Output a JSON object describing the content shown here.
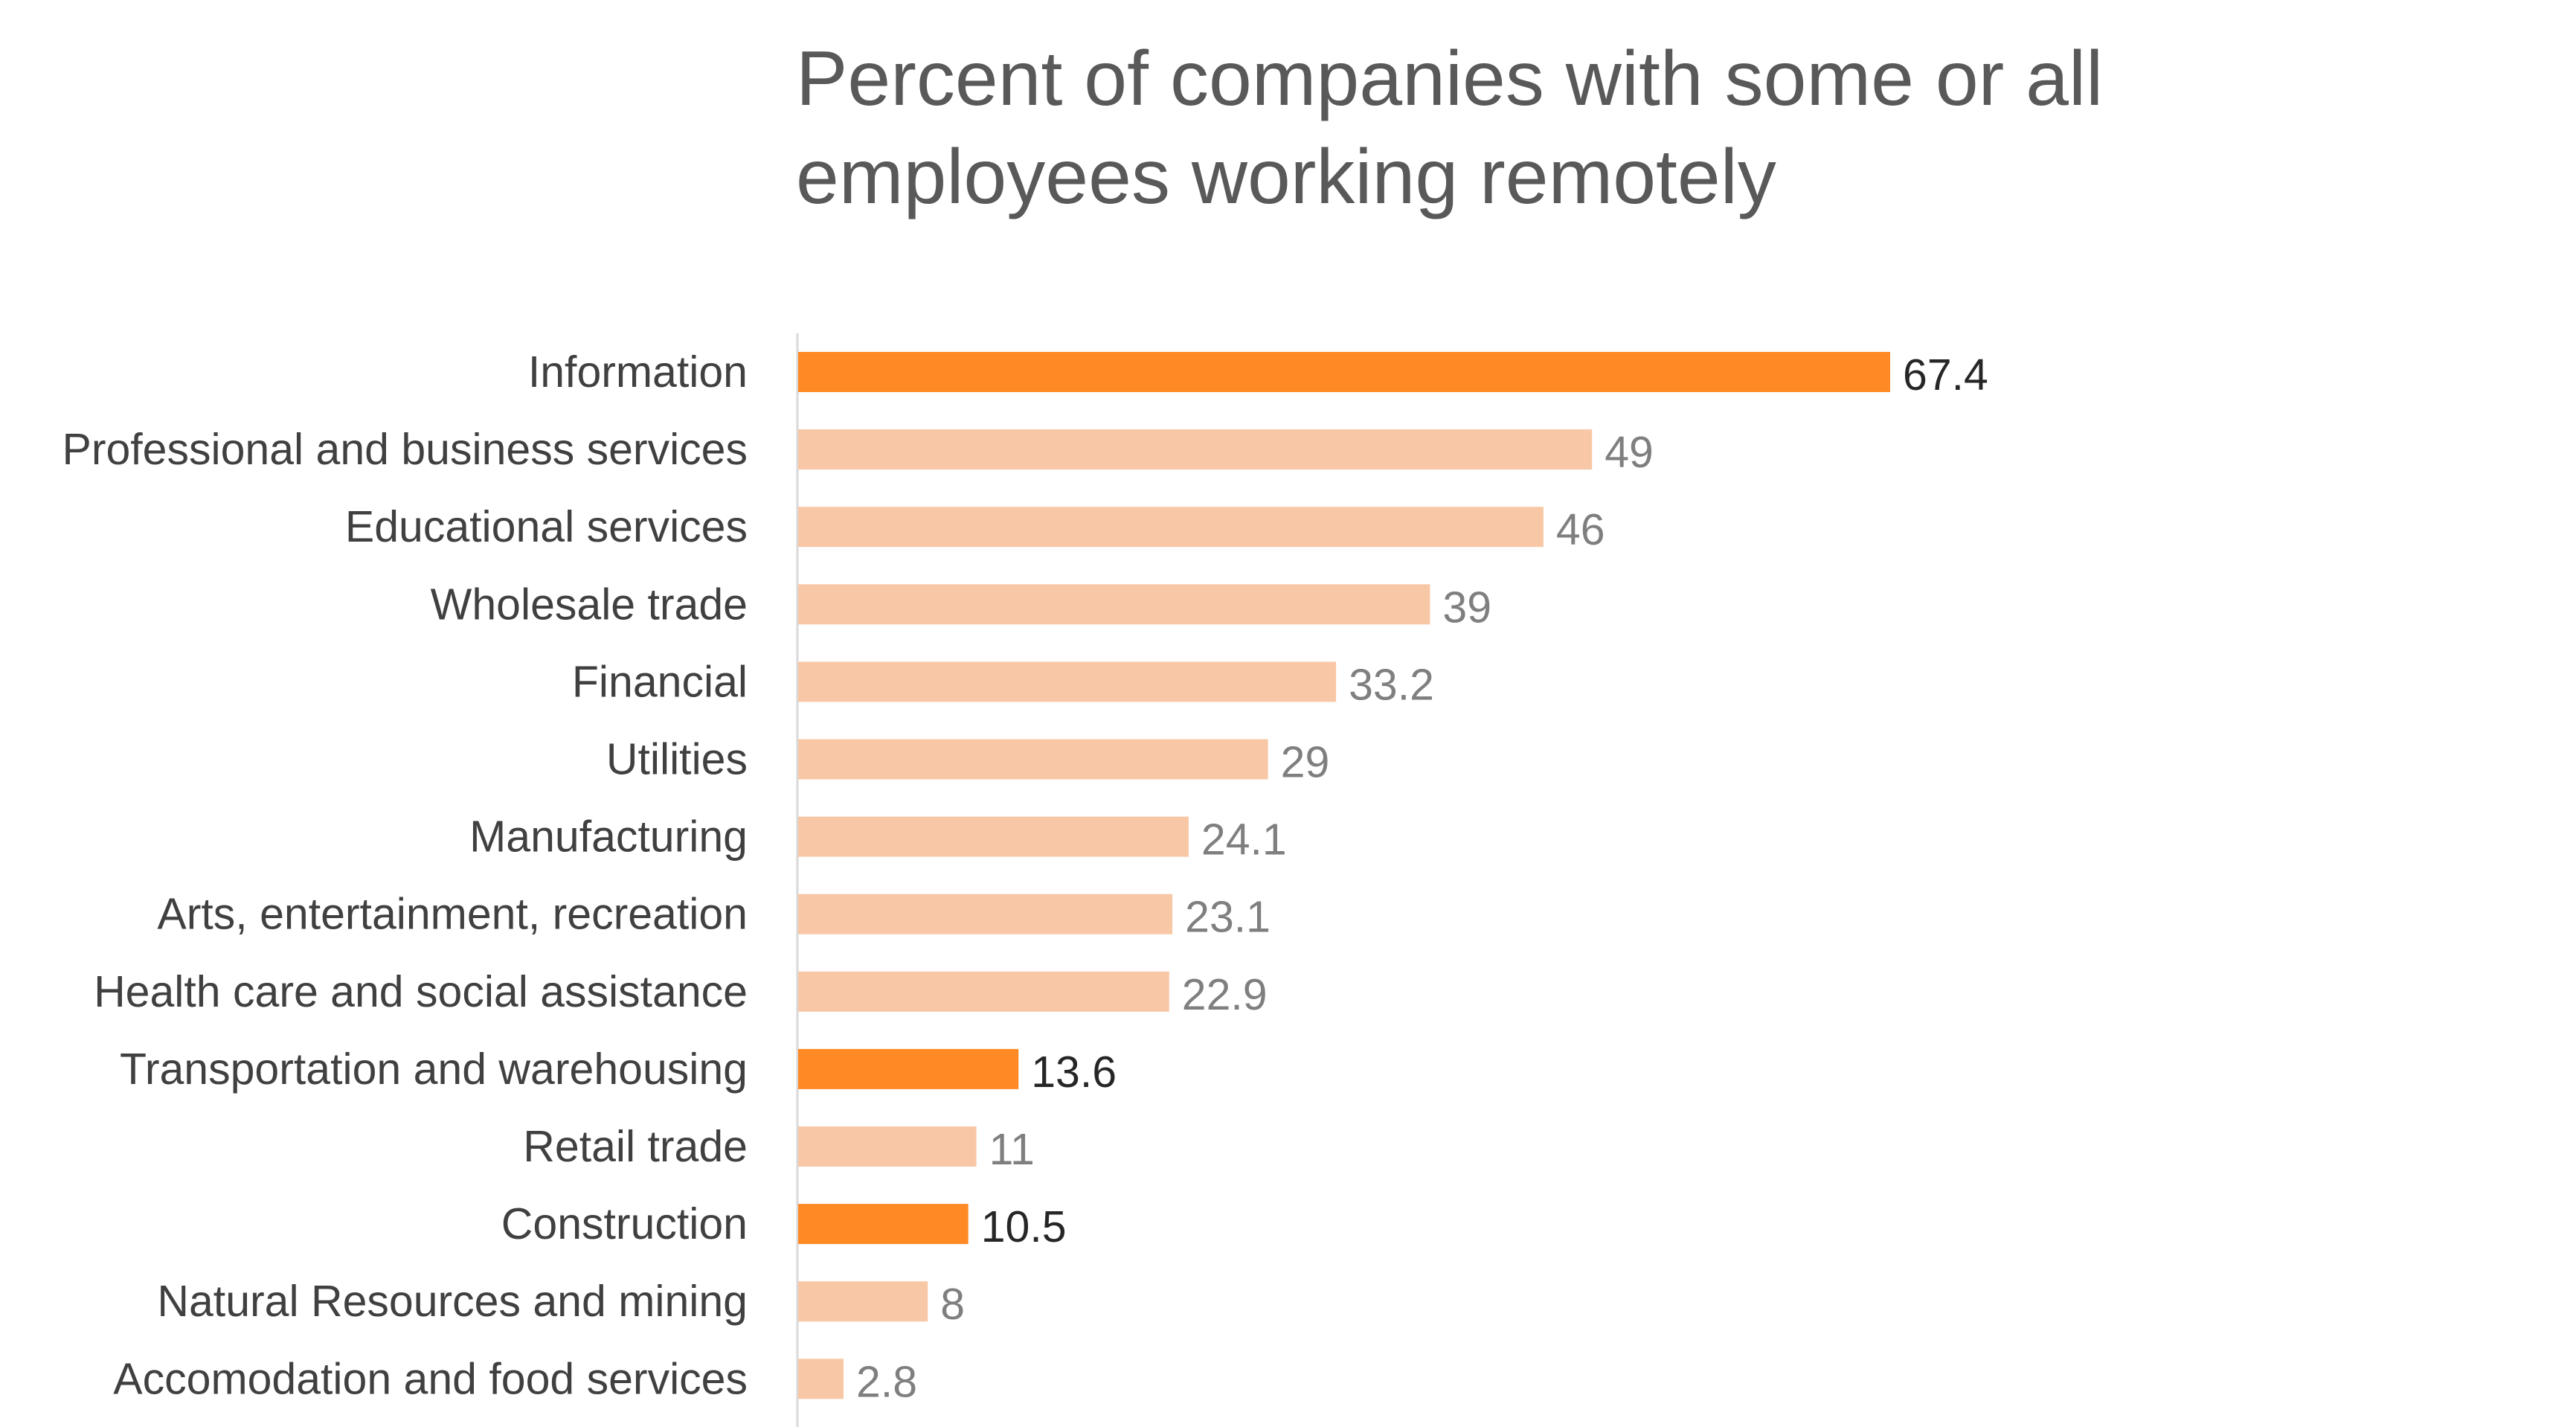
{
  "chart_data": {
    "type": "bar",
    "orientation": "horizontal",
    "title": "Percent of companies with some or all employees working remotely",
    "xlabel": "",
    "ylabel": "",
    "xlim": [
      0,
      67.4
    ],
    "grid": false,
    "legend": "none",
    "categories": [
      "Information",
      "Professional and business services",
      "Educational services",
      "Wholesale trade",
      "Financial",
      "Utilities",
      "Manufacturing",
      "Arts, entertainment, recreation",
      "Health care and social assistance",
      "Transportation and warehousing",
      "Retail trade",
      "Construction",
      "Natural Resources and mining",
      "Accomodation and food services"
    ],
    "values": [
      67.4,
      49,
      46,
      39,
      33.2,
      29,
      24.1,
      23.1,
      22.9,
      13.6,
      11,
      10.5,
      8,
      2.8
    ],
    "value_labels": [
      "67.4",
      "49",
      "46",
      "39",
      "33.2",
      "29",
      "24.1",
      "23.1",
      "22.9",
      "13.6",
      "11",
      "10.5",
      "8",
      "2.8"
    ],
    "highlighted": [
      true,
      false,
      false,
      false,
      false,
      false,
      false,
      false,
      false,
      true,
      false,
      true,
      false,
      false
    ],
    "colors": {
      "highlight": "#FF8A25",
      "normal": "#F8C8A6",
      "highlight_label": "#262626",
      "normal_label": "#7F7F7F",
      "axis": "#D9D9D9"
    }
  }
}
